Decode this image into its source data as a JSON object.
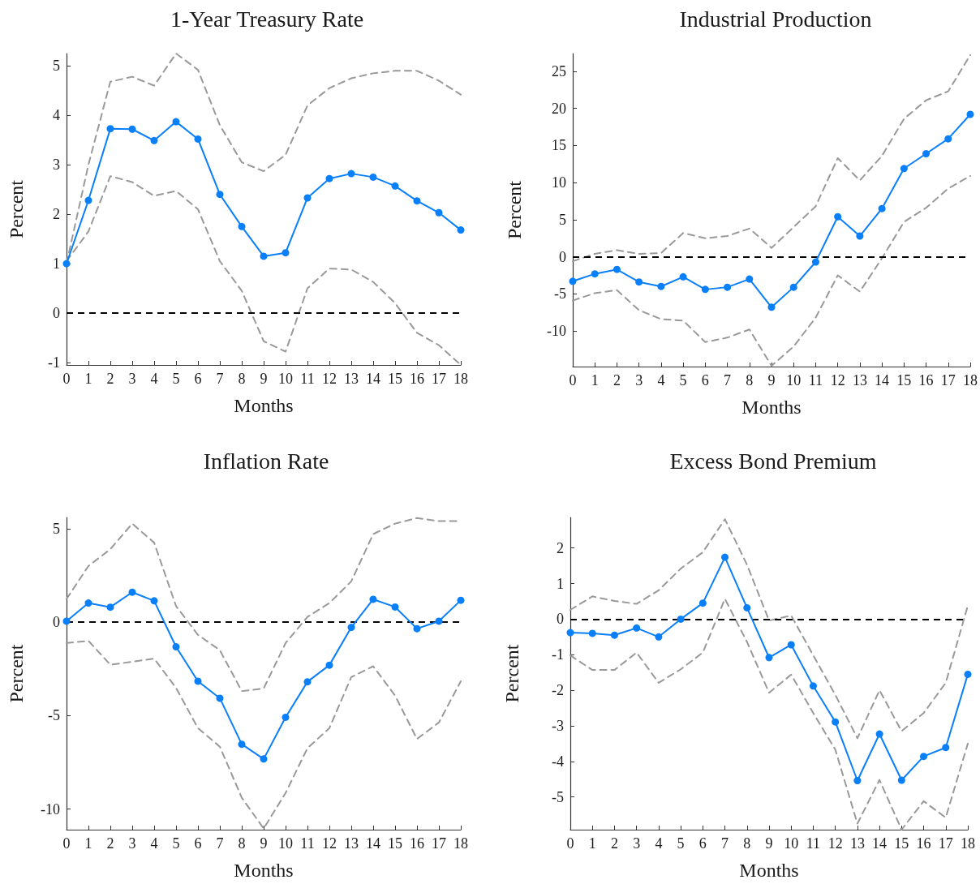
{
  "chart_data": [
    {
      "type": "line",
      "title": "1-Year Treasury Rate",
      "xlabel": "Months",
      "ylabel": "Percent",
      "x": [
        0,
        1,
        2,
        3,
        4,
        5,
        6,
        7,
        8,
        9,
        10,
        11,
        12,
        13,
        14,
        15,
        16,
        17,
        18
      ],
      "xlim": [
        0,
        18
      ],
      "xticks": [
        0,
        1,
        2,
        3,
        4,
        5,
        6,
        7,
        8,
        9,
        10,
        11,
        12,
        13,
        14,
        15,
        16,
        17,
        18
      ],
      "ylim": [
        -1.05,
        5.25
      ],
      "yticks": [
        -1,
        0,
        1,
        2,
        3,
        4,
        5
      ],
      "series": [
        {
          "color": "#0a7ffa",
          "marker": "circle",
          "line_style": "solid",
          "values": [
            1.0,
            2.28,
            3.73,
            3.72,
            3.49,
            3.87,
            3.52,
            2.4,
            1.75,
            1.15,
            1.22,
            2.33,
            2.72,
            2.82,
            2.75,
            2.57,
            2.27,
            2.03,
            1.68
          ]
        },
        {
          "color": "#999999",
          "marker": "none",
          "line_style": "dashed",
          "values": [
            1.0,
            3.0,
            4.68,
            4.78,
            4.6,
            5.25,
            4.92,
            3.8,
            3.05,
            2.87,
            3.2,
            4.2,
            4.55,
            4.75,
            4.85,
            4.9,
            4.9,
            4.7,
            4.42
          ]
        },
        {
          "color": "#999999",
          "marker": "none",
          "line_style": "dashed",
          "values": [
            1.05,
            1.65,
            2.77,
            2.65,
            2.37,
            2.47,
            2.1,
            1.05,
            0.45,
            -0.57,
            -0.78,
            0.5,
            0.9,
            0.88,
            0.63,
            0.2,
            -0.4,
            -0.65,
            -1.05
          ]
        }
      ],
      "ref_lines": [
        {
          "axis": "y",
          "value": 0,
          "color": "#000000",
          "line_style": "dashed"
        }
      ]
    },
    {
      "type": "line",
      "title": "Industrial Production",
      "xlabel": "Months",
      "ylabel": "Percent",
      "x": [
        0,
        1,
        2,
        3,
        4,
        5,
        6,
        7,
        8,
        9,
        10,
        11,
        12,
        13,
        14,
        15,
        16,
        17,
        18
      ],
      "xlim": [
        0,
        18
      ],
      "xticks": [
        0,
        1,
        2,
        3,
        4,
        5,
        6,
        7,
        8,
        9,
        10,
        11,
        12,
        13,
        14,
        15,
        16,
        17,
        18
      ],
      "ylim": [
        -14.8,
        27.4
      ],
      "yticks": [
        -10,
        -5,
        0,
        5,
        10,
        15,
        20,
        25
      ],
      "series": [
        {
          "color": "#0a7ffa",
          "marker": "circle",
          "line_style": "solid",
          "values": [
            -3.3,
            -2.3,
            -1.7,
            -3.4,
            -4.0,
            -2.7,
            -4.4,
            -4.1,
            -3.0,
            -6.8,
            -4.1,
            -0.7,
            5.4,
            2.8,
            6.5,
            11.9,
            13.9,
            15.9,
            19.2
          ]
        },
        {
          "color": "#999999",
          "marker": "none",
          "line_style": "dashed",
          "values": [
            -0.6,
            0.4,
            0.9,
            0.4,
            0.5,
            3.2,
            2.5,
            2.8,
            3.8,
            1.2,
            4.0,
            6.8,
            13.3,
            10.3,
            13.6,
            18.6,
            21.1,
            22.3,
            27.2
          ]
        },
        {
          "color": "#999999",
          "marker": "none",
          "line_style": "dashed",
          "values": [
            -5.9,
            -4.9,
            -4.5,
            -7.2,
            -8.4,
            -8.6,
            -11.5,
            -10.9,
            -9.8,
            -14.7,
            -12.1,
            -8.2,
            -2.5,
            -4.7,
            -0.2,
            4.7,
            6.6,
            9.2,
            10.9
          ]
        }
      ],
      "ref_lines": [
        {
          "axis": "y",
          "value": 0,
          "color": "#000000",
          "line_style": "dashed"
        }
      ]
    },
    {
      "type": "line",
      "title": "Inflation Rate",
      "xlabel": "Months",
      "ylabel": "Percent",
      "x": [
        0,
        1,
        2,
        3,
        4,
        5,
        6,
        7,
        8,
        9,
        10,
        11,
        12,
        13,
        14,
        15,
        16,
        17,
        18
      ],
      "xlim": [
        0,
        18
      ],
      "xticks": [
        0,
        1,
        2,
        3,
        4,
        5,
        6,
        7,
        8,
        9,
        10,
        11,
        12,
        13,
        14,
        15,
        16,
        17,
        18
      ],
      "ylim": [
        -11.1,
        5.6
      ],
      "yticks": [
        -10,
        -5,
        0,
        5
      ],
      "series": [
        {
          "color": "#0a7ffa",
          "marker": "circle",
          "line_style": "solid",
          "values": [
            0.05,
            1.02,
            0.8,
            1.6,
            1.14,
            -1.32,
            -3.16,
            -4.07,
            -6.53,
            -7.32,
            -5.09,
            -3.19,
            -2.3,
            -0.28,
            1.22,
            0.81,
            -0.35,
            0.05,
            1.17
          ]
        },
        {
          "color": "#999999",
          "marker": "none",
          "line_style": "dashed",
          "values": [
            1.24,
            3.0,
            3.9,
            5.27,
            4.25,
            0.86,
            -0.68,
            -1.5,
            -3.69,
            -3.55,
            -1.12,
            0.28,
            1.02,
            2.18,
            4.71,
            5.27,
            5.57,
            5.4,
            5.4
          ]
        },
        {
          "color": "#999999",
          "marker": "none",
          "line_style": "dashed",
          "values": [
            -1.12,
            -1.0,
            -2.28,
            -2.12,
            -1.95,
            -3.52,
            -5.67,
            -6.66,
            -9.39,
            -11.04,
            -9.14,
            -6.74,
            -5.67,
            -2.94,
            -2.36,
            -3.93,
            -6.25,
            -5.37,
            -3.16
          ]
        }
      ],
      "ref_lines": [
        {
          "axis": "y",
          "value": 0,
          "color": "#000000",
          "line_style": "dashed"
        }
      ]
    },
    {
      "type": "line",
      "title": "Excess Bond Premium",
      "xlabel": "Months",
      "ylabel": "Percent",
      "x": [
        0,
        1,
        2,
        3,
        4,
        5,
        6,
        7,
        8,
        9,
        10,
        11,
        12,
        13,
        14,
        15,
        16,
        17,
        18
      ],
      "xlim": [
        0,
        18
      ],
      "xticks": [
        0,
        1,
        2,
        3,
        4,
        5,
        6,
        7,
        8,
        9,
        10,
        11,
        12,
        13,
        14,
        15,
        16,
        17,
        18
      ],
      "ylim": [
        -5.92,
        2.86
      ],
      "yticks": [
        -5,
        -4,
        -3,
        -2,
        -1,
        0,
        1,
        2
      ],
      "series": [
        {
          "color": "#0a7ffa",
          "marker": "circle",
          "line_style": "solid",
          "values": [
            -0.38,
            -0.4,
            -0.45,
            -0.25,
            -0.5,
            0.0,
            0.45,
            1.74,
            0.32,
            -1.08,
            -0.72,
            -1.88,
            -2.89,
            -4.54,
            -3.23,
            -4.53,
            -3.86,
            -3.61,
            -1.55
          ]
        },
        {
          "color": "#999999",
          "marker": "none",
          "line_style": "dashed",
          "values": [
            0.26,
            0.64,
            0.51,
            0.43,
            0.81,
            1.42,
            1.88,
            2.81,
            1.53,
            -0.04,
            0.1,
            -1.02,
            -2.13,
            -3.35,
            -2.0,
            -3.15,
            -2.64,
            -1.79,
            0.38
          ]
        },
        {
          "color": "#999999",
          "marker": "none",
          "line_style": "dashed",
          "values": [
            -1.02,
            -1.43,
            -1.43,
            -0.94,
            -1.79,
            -1.41,
            -0.94,
            0.57,
            -0.64,
            -2.07,
            -1.56,
            -2.64,
            -3.67,
            -5.75,
            -4.52,
            -5.92,
            -5.12,
            -5.58,
            -3.5
          ]
        }
      ],
      "ref_lines": [
        {
          "axis": "y",
          "value": 0,
          "color": "#000000",
          "line_style": "dashed"
        }
      ]
    }
  ]
}
